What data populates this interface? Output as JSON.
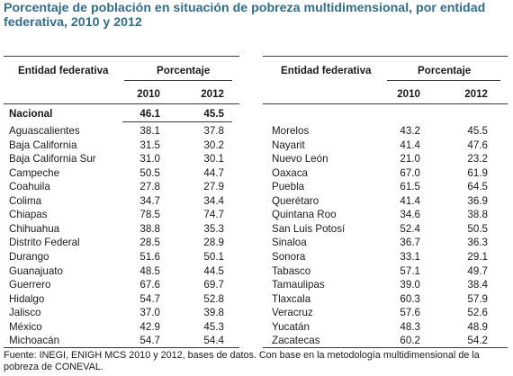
{
  "title": "Porcentaje de población en situación de pobreza multidimensional, por entidad federativa, 2010 y 2012",
  "left_table": {
    "col_entity": "Entidad federativa",
    "col_pct": "Porcentaje",
    "year_a": "2010",
    "year_b": "2012",
    "national": {
      "name": "Nacional",
      "a": "46.1",
      "b": "45.5"
    },
    "rows": [
      {
        "name": "Aguascalientes",
        "a": "38.1",
        "b": "37.8"
      },
      {
        "name": "Baja California",
        "a": "31.5",
        "b": "30.2"
      },
      {
        "name": "Baja California Sur",
        "a": "31.0",
        "b": "30.1"
      },
      {
        "name": "Campeche",
        "a": "50.5",
        "b": "44.7"
      },
      {
        "name": "Coahuila",
        "a": "27.8",
        "b": "27.9"
      },
      {
        "name": "Colima",
        "a": "34.7",
        "b": "34.4"
      },
      {
        "name": "Chiapas",
        "a": "78.5",
        "b": "74.7"
      },
      {
        "name": "Chihuahua",
        "a": "38.8",
        "b": "35.3"
      },
      {
        "name": "Distrito Federal",
        "a": "28.5",
        "b": "28.9"
      },
      {
        "name": "Durango",
        "a": "51.6",
        "b": "50.1"
      },
      {
        "name": "Guanajuato",
        "a": "48.5",
        "b": "44.5"
      },
      {
        "name": "Guerrero",
        "a": "67.6",
        "b": "69.7"
      },
      {
        "name": "Hidalgo",
        "a": "54.7",
        "b": "52.8"
      },
      {
        "name": "Jalisco",
        "a": "37.0",
        "b": "39.8"
      },
      {
        "name": "México",
        "a": "42.9",
        "b": "45.3"
      },
      {
        "name": "Michoacán",
        "a": "54.7",
        "b": "54.4"
      }
    ]
  },
  "right_table": {
    "col_entity": "Entidad federativa",
    "col_pct": "Porcentaje",
    "year_a": "2010",
    "year_b": "2012",
    "rows": [
      {
        "name": "Morelos",
        "a": "43.2",
        "b": "45.5"
      },
      {
        "name": "Nayarit",
        "a": "41.4",
        "b": "47.6"
      },
      {
        "name": "Nuevo León",
        "a": "21.0",
        "b": "23.2"
      },
      {
        "name": "Oaxaca",
        "a": "67.0",
        "b": "61.9"
      },
      {
        "name": "Puebla",
        "a": "61.5",
        "b": "64.5"
      },
      {
        "name": "Querétaro",
        "a": "41.4",
        "b": "36.9"
      },
      {
        "name": "Quintana Roo",
        "a": "34.6",
        "b": "38.8"
      },
      {
        "name": "San Luis Potosí",
        "a": "52.4",
        "b": "50.5"
      },
      {
        "name": "Sinaloa",
        "a": "36.7",
        "b": "36.3"
      },
      {
        "name": "Sonora",
        "a": "33.1",
        "b": "29.1"
      },
      {
        "name": "Tabasco",
        "a": "57.1",
        "b": "49.7"
      },
      {
        "name": "Tamaulipas",
        "a": "39.0",
        "b": "38.4"
      },
      {
        "name": "Tlaxcala",
        "a": "60.3",
        "b": "57.9"
      },
      {
        "name": "Veracruz",
        "a": "57.6",
        "b": "52.6"
      },
      {
        "name": "Yucatán",
        "a": "48.3",
        "b": "48.9"
      },
      {
        "name": "Zacatecas",
        "a": "60.2",
        "b": "54.2"
      }
    ]
  },
  "source": "Fuente: INEGI, ENIGH MCS 2010 y 2012, bases de datos. Con base en la metodología multidimensional de la pobreza de CONEVAL."
}
